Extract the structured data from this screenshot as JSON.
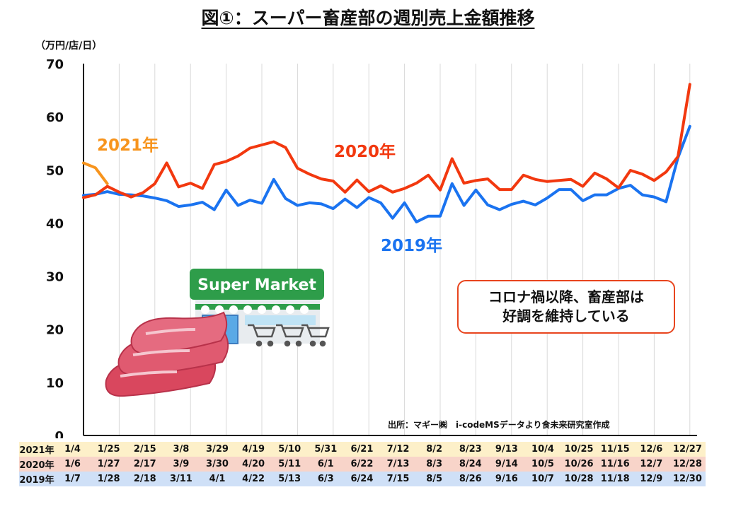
{
  "title": "図①：スーパー畜産部の週別売上金額推移",
  "unit": "（万円/店/日）",
  "callout": {
    "line1": "コロナ禍以降、畜産部は",
    "line2": "好調を維持している"
  },
  "source": "出所：マギー㈱　i-codeMSデータより食未来研究室作成",
  "illustration": {
    "sign_text": "Super Market",
    "icons": [
      "supermarket-building-icon",
      "shopping-cart-icon",
      "raw-meat-icon"
    ]
  },
  "colors": {
    "s2021": "#f7941d",
    "s2020": "#f2380f",
    "s2019": "#1a73f0",
    "grid": "#d9d9d9",
    "axis": "#111111",
    "callout_border": "#e8451e"
  },
  "chart_data": {
    "type": "line",
    "title": "図①：スーパー畜産部の週別売上金額推移",
    "ylabel": "（万円/店/日）",
    "ylim": [
      0,
      70
    ],
    "yticks": [
      0,
      10,
      20,
      30,
      40,
      50,
      60,
      70
    ],
    "grid": "vertical",
    "x_points": 52,
    "series": [
      {
        "name": "2021年",
        "color": "#f7941d",
        "values": [
          51.3,
          50.4,
          47.4
        ]
      },
      {
        "name": "2020年",
        "color": "#f2380f",
        "values": [
          44.8,
          45.3,
          46.9,
          45.8,
          44.9,
          45.7,
          47.4,
          51.3,
          46.8,
          47.5,
          46.5,
          51.0,
          51.6,
          52.6,
          54.1,
          54.7,
          55.3,
          54.2,
          50.3,
          49.2,
          48.3,
          47.9,
          45.8,
          48.1,
          45.9,
          47.0,
          45.8,
          46.5,
          47.5,
          49.0,
          46.2,
          52.1,
          47.5,
          48.0,
          48.3,
          46.3,
          46.3,
          49.0,
          48.2,
          47.8,
          48.0,
          48.2,
          46.9,
          49.4,
          48.3,
          46.6,
          49.9,
          49.2,
          48.0,
          49.6,
          52.5,
          66.1
        ]
      },
      {
        "name": "2019年",
        "color": "#1a73f0",
        "values": [
          45.2,
          45.4,
          45.9,
          45.4,
          45.3,
          45.1,
          44.7,
          44.2,
          43.1,
          43.4,
          43.9,
          42.5,
          46.2,
          43.3,
          44.3,
          43.7,
          48.2,
          44.6,
          43.3,
          43.8,
          43.6,
          42.7,
          44.5,
          42.9,
          44.8,
          43.8,
          40.9,
          43.8,
          40.2,
          41.3,
          41.3,
          47.4,
          43.3,
          46.2,
          43.4,
          42.5,
          43.5,
          44.1,
          43.4,
          44.7,
          46.3,
          46.3,
          44.2,
          45.3,
          45.3,
          46.5,
          47.1,
          45.3,
          44.9,
          44.0,
          52.3,
          58.2
        ]
      }
    ],
    "annotations": [
      {
        "text": "2021年",
        "series": "2021年"
      },
      {
        "text": "2020年",
        "series": "2020年"
      },
      {
        "text": "2019年",
        "series": "2019年"
      }
    ],
    "date_table": {
      "rows": [
        {
          "label": "2021年",
          "dates": [
            "1/4",
            "1/25",
            "2/15",
            "3/8",
            "3/29",
            "4/19",
            "5/10",
            "5/31",
            "6/21",
            "7/12",
            "8/2",
            "8/23",
            "9/13",
            "10/4",
            "10/25",
            "11/15",
            "12/6",
            "12/27"
          ]
        },
        {
          "label": "2020年",
          "dates": [
            "1/6",
            "1/27",
            "2/17",
            "3/9",
            "3/30",
            "4/20",
            "5/11",
            "6/1",
            "6/22",
            "7/13",
            "8/3",
            "8/24",
            "9/14",
            "10/5",
            "10/26",
            "11/16",
            "12/7",
            "12/28"
          ]
        },
        {
          "label": "2019年",
          "dates": [
            "1/7",
            "1/28",
            "2/18",
            "3/11",
            "4/1",
            "4/22",
            "5/13",
            "6/3",
            "6/24",
            "7/15",
            "8/5",
            "8/26",
            "9/16",
            "10/7",
            "10/28",
            "11/18",
            "12/9",
            "12/30"
          ]
        }
      ]
    }
  }
}
